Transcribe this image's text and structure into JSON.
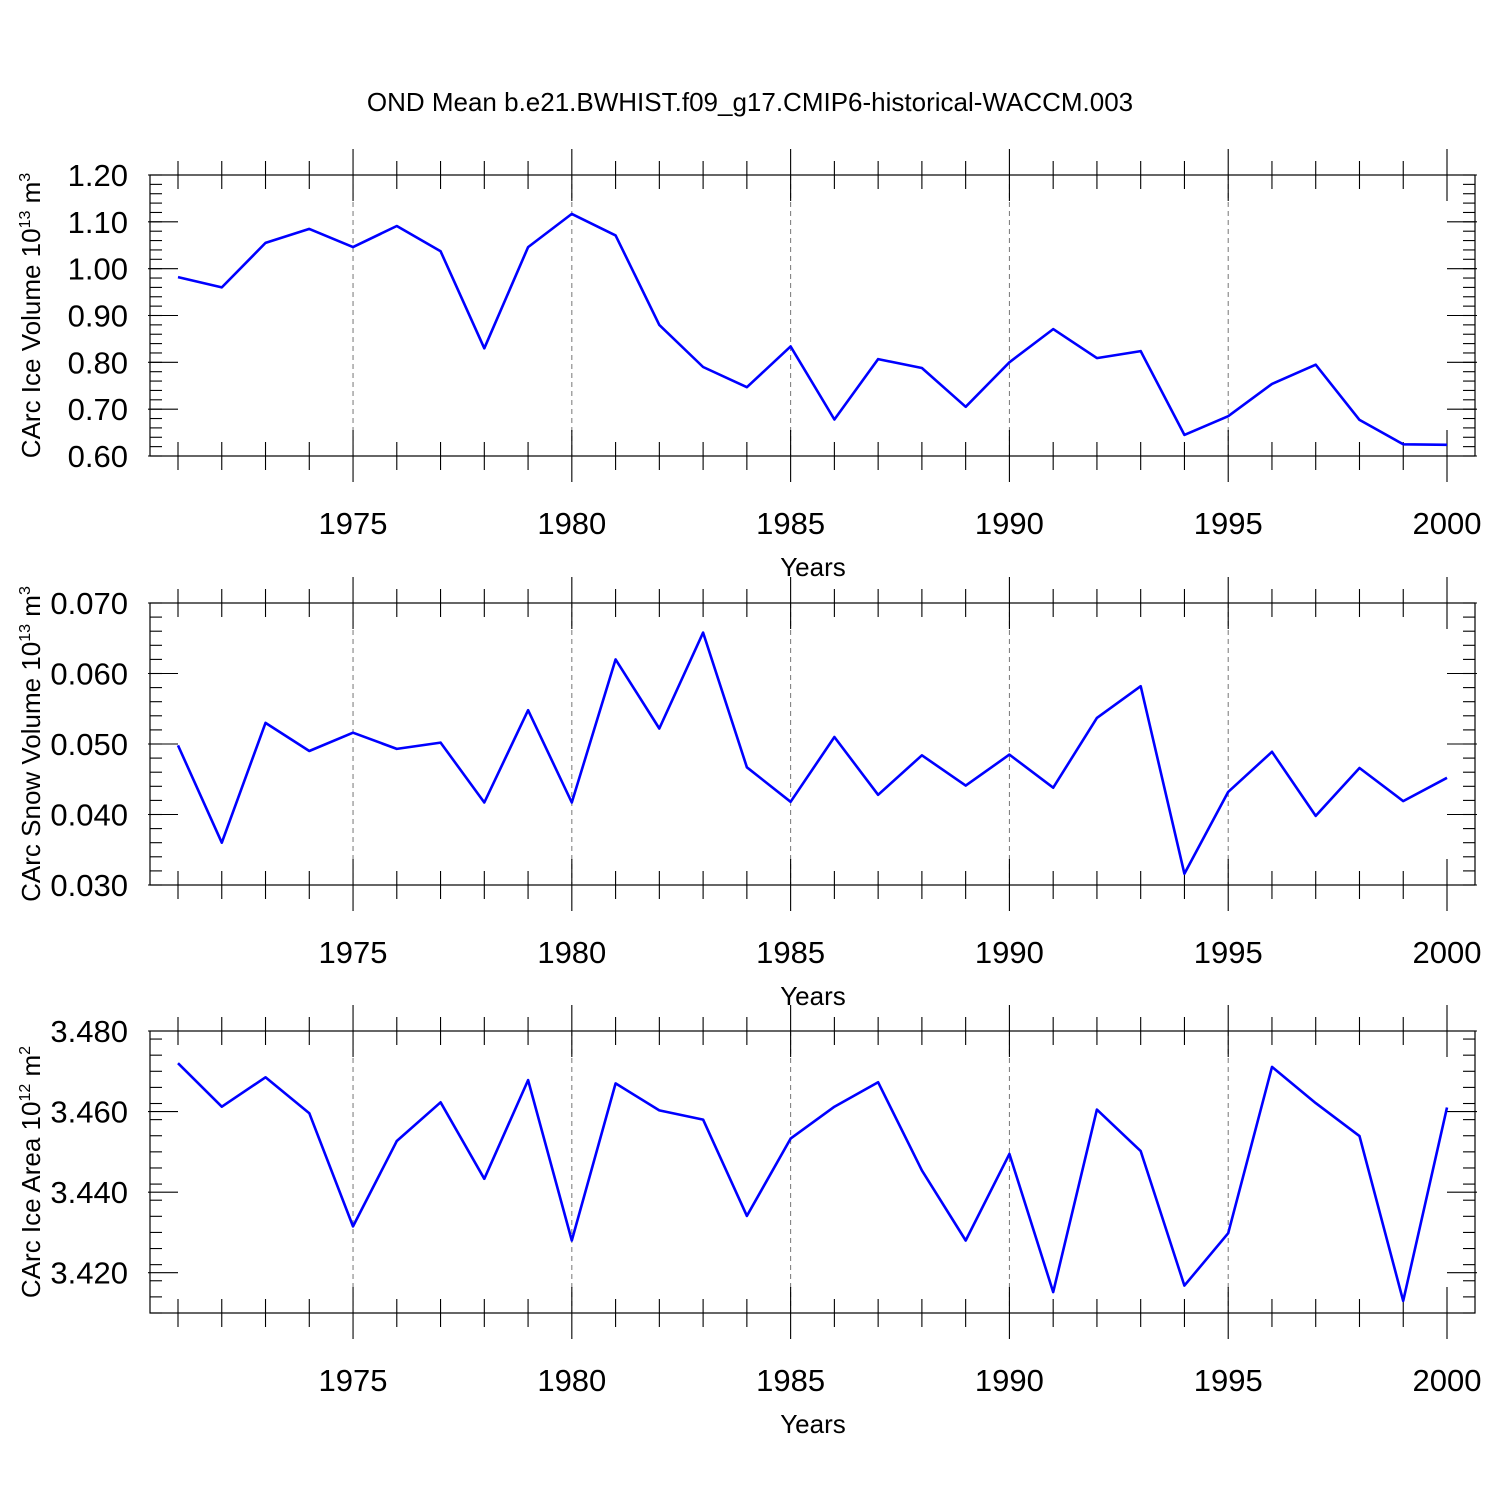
{
  "title": "OND Mean b.e21.BWHIST.f09_g17.CMIP6-historical-WACCM.003",
  "colors": {
    "line": "#0000ff",
    "axis": "#000000",
    "grid": "#777777"
  },
  "chart_data": [
    {
      "type": "line",
      "xlabel": "Years",
      "ylabel": {
        "text": "CArc Ice Volume 10",
        "sup": "13",
        "unit": " m",
        "unit_sup": "3"
      },
      "xlim": [
        1971,
        2000
      ],
      "ylim": [
        0.6,
        1.2
      ],
      "x_ticks": [
        1975,
        1980,
        1985,
        1990,
        1995,
        2000
      ],
      "y_ticks": [
        0.6,
        0.7,
        0.8,
        0.9,
        1.0,
        1.1,
        1.2
      ],
      "y_tick_labels": [
        "0.60",
        "0.70",
        "0.80",
        "0.90",
        "1.00",
        "1.10",
        "1.20"
      ],
      "y_minor_step": 0.02,
      "grid": "x-major-dashed",
      "x": [
        1971,
        1972,
        1973,
        1974,
        1975,
        1976,
        1977,
        1978,
        1979,
        1980,
        1981,
        1982,
        1983,
        1984,
        1985,
        1986,
        1987,
        1988,
        1989,
        1990,
        1991,
        1992,
        1993,
        1994,
        1995,
        1996,
        1997,
        1998,
        1999,
        2000
      ],
      "values": [
        0.982,
        0.96,
        1.055,
        1.085,
        1.046,
        1.091,
        1.037,
        0.83,
        1.046,
        1.117,
        1.071,
        0.88,
        0.79,
        0.747,
        0.834,
        0.678,
        0.807,
        0.788,
        0.705,
        0.8,
        0.871,
        0.809,
        0.824,
        0.645,
        0.685,
        0.754,
        0.795,
        0.677,
        0.625,
        0.624
      ]
    },
    {
      "type": "line",
      "xlabel": "Years",
      "ylabel": {
        "text": "CArc Snow Volume 10",
        "sup": "13",
        "unit": " m",
        "unit_sup": "3"
      },
      "xlim": [
        1971,
        2000
      ],
      "ylim": [
        0.03,
        0.07
      ],
      "x_ticks": [
        1975,
        1980,
        1985,
        1990,
        1995,
        2000
      ],
      "y_ticks": [
        0.03,
        0.04,
        0.05,
        0.06,
        0.07
      ],
      "y_tick_labels": [
        "0.030",
        "0.040",
        "0.050",
        "0.060",
        "0.070"
      ],
      "y_minor_step": 0.002,
      "grid": "x-major-dashed",
      "x": [
        1971,
        1972,
        1973,
        1974,
        1975,
        1976,
        1977,
        1978,
        1979,
        1980,
        1981,
        1982,
        1983,
        1984,
        1985,
        1986,
        1987,
        1988,
        1989,
        1990,
        1991,
        1992,
        1993,
        1994,
        1995,
        1996,
        1997,
        1998,
        1999,
        2000
      ],
      "values": [
        0.0498,
        0.036,
        0.053,
        0.049,
        0.0516,
        0.0493,
        0.0502,
        0.0417,
        0.0548,
        0.0417,
        0.062,
        0.0522,
        0.0658,
        0.0467,
        0.0418,
        0.051,
        0.0428,
        0.0484,
        0.0441,
        0.0485,
        0.0438,
        0.0537,
        0.0582,
        0.0316,
        0.0432,
        0.0489,
        0.0398,
        0.0466,
        0.0419,
        0.0452
      ]
    },
    {
      "type": "line",
      "xlabel": "Years",
      "ylabel": {
        "text": "CArc Ice Area 10",
        "sup": "12",
        "unit": " m",
        "unit_sup": "2"
      },
      "xlim": [
        1971,
        2000
      ],
      "ylim": [
        3.41,
        3.48
      ],
      "x_ticks": [
        1975,
        1980,
        1985,
        1990,
        1995,
        2000
      ],
      "y_ticks": [
        3.42,
        3.44,
        3.46,
        3.48
      ],
      "y_tick_labels": [
        "3.420",
        "3.440",
        "3.460",
        "3.480"
      ],
      "y_minor_step": 0.004,
      "grid": "x-major-dashed",
      "x": [
        1971,
        1972,
        1973,
        1974,
        1975,
        1976,
        1977,
        1978,
        1979,
        1980,
        1981,
        1982,
        1983,
        1984,
        1985,
        1986,
        1987,
        1988,
        1989,
        1990,
        1991,
        1992,
        1993,
        1994,
        1995,
        1996,
        1997,
        1998,
        1999,
        2000
      ],
      "values": [
        3.472,
        3.4612,
        3.4685,
        3.4596,
        3.4315,
        3.4527,
        3.4623,
        3.4433,
        3.4678,
        3.428,
        3.467,
        3.4603,
        3.458,
        3.4341,
        3.4533,
        3.4612,
        3.4673,
        3.4454,
        3.428,
        3.4495,
        3.4152,
        3.4605,
        3.4502,
        3.4168,
        3.4298,
        3.4711,
        3.4621,
        3.4539,
        3.413,
        3.461
      ]
    }
  ]
}
